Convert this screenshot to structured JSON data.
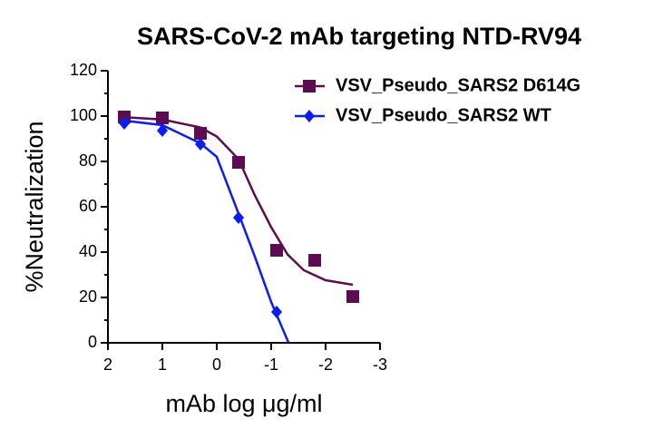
{
  "chart_data": {
    "type": "scatter",
    "title": "SARS-CoV-2 mAb targeting NTD-RV94",
    "x_label": "mAb log μg/ml",
    "y_label": "%Neutralization",
    "xlim": [
      2,
      -3
    ],
    "xticks": [
      2,
      1,
      0,
      -1,
      -2,
      -3
    ],
    "ylim": [
      0,
      120
    ],
    "yticks": [
      0,
      20,
      40,
      60,
      80,
      100,
      120
    ],
    "yminorticks": [
      10,
      30,
      50,
      70,
      90,
      110
    ],
    "legend": "top-right",
    "series": [
      {
        "name": "VSV_Pseudo_SARS2 D614G",
        "color": "#5e0c52",
        "marker": "square",
        "x": [
          1.7,
          1.0,
          0.3,
          -0.4,
          -1.1,
          -1.8,
          -2.5
        ],
        "values": [
          99.6,
          99.2,
          92.4,
          79.6,
          40.8,
          36.4,
          20.4
        ],
        "fit_x": [
          1.7,
          1.0,
          0.3,
          0,
          -0.4,
          -0.7,
          -1.0,
          -1.3,
          -1.6,
          -2.0,
          -2.5
        ],
        "fit_y": [
          99.5,
          98.5,
          95,
          91,
          81,
          65,
          51,
          39,
          32,
          27.6,
          25.6
        ]
      },
      {
        "name": "VSV_Pseudo_SARS2 WT",
        "color": "#0b1cf5",
        "marker": "diamond",
        "x": [
          1.7,
          1.0,
          0.3,
          -0.4,
          -1.1
        ],
        "values": [
          96.8,
          93.6,
          87.6,
          55.2,
          13.6
        ],
        "fit_x": [
          1.7,
          1.0,
          0.3,
          0,
          -0.4,
          -0.7,
          -1.0,
          -1.32
        ],
        "fit_y": [
          98,
          96,
          88,
          82,
          57,
          38,
          18,
          0
        ]
      }
    ]
  }
}
